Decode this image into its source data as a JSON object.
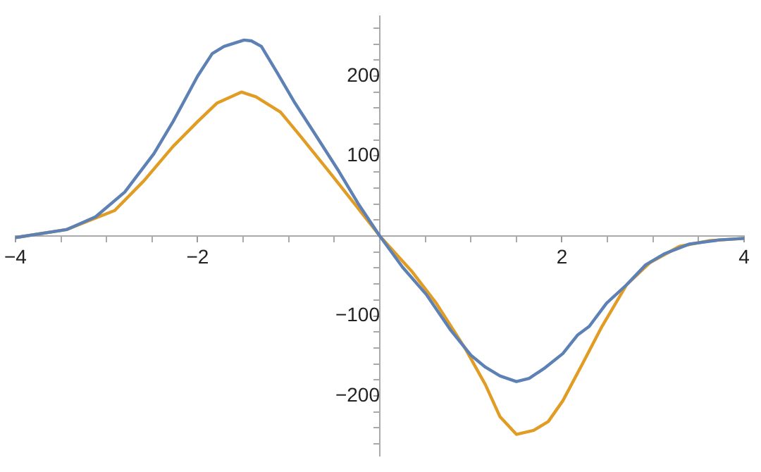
{
  "chart_data": {
    "type": "line",
    "xlim": [
      -4,
      4
    ],
    "ylim": [
      -275,
      275
    ],
    "xticks": [
      -4,
      {
        "value": -3.5,
        "label": null
      },
      {
        "value": -3,
        "label": null
      },
      {
        "value": -2.5,
        "label": null
      },
      -2,
      {
        "value": -1.5,
        "label": null
      },
      {
        "value": -1,
        "label": null
      },
      {
        "value": -0.5,
        "label": null
      },
      {
        "value": 0.5,
        "label": null
      },
      {
        "value": 1,
        "label": null
      },
      {
        "value": 1.5,
        "label": null
      },
      2,
      {
        "value": 2.5,
        "label": null
      },
      {
        "value": 3,
        "label": null
      },
      {
        "value": 3.5,
        "label": null
      },
      4
    ],
    "yticks": [
      {
        "value": -260,
        "label": null
      },
      {
        "value": -240,
        "label": null
      },
      {
        "value": -220,
        "label": null
      },
      -200,
      {
        "value": -180,
        "label": null
      },
      {
        "value": -160,
        "label": null
      },
      {
        "value": -140,
        "label": null
      },
      {
        "value": -120,
        "label": null
      },
      -100,
      {
        "value": -80,
        "label": null
      },
      {
        "value": -60,
        "label": null
      },
      {
        "value": -40,
        "label": null
      },
      {
        "value": -20,
        "label": null
      },
      {
        "value": 20,
        "label": null
      },
      {
        "value": 40,
        "label": null
      },
      {
        "value": 60,
        "label": null
      },
      {
        "value": 80,
        "label": null
      },
      100,
      {
        "value": 120,
        "label": null
      },
      {
        "value": 140,
        "label": null
      },
      {
        "value": 160,
        "label": null
      },
      {
        "value": 180,
        "label": null
      },
      200,
      {
        "value": 220,
        "label": null
      },
      {
        "value": 240,
        "label": null
      },
      {
        "value": 260,
        "label": null
      }
    ],
    "grid": false,
    "legend": false,
    "marker": "none",
    "line_style": "solid",
    "series": [
      {
        "color": "#5e81b5",
        "x": [
          -4,
          -3.44,
          -3.12,
          -2.8,
          -2.48,
          -2.27,
          -2,
          -1.84,
          -1.71,
          -1.6,
          -1.49,
          -1.41,
          -1.3,
          -1.12,
          -0.93,
          -0.72,
          -0.45,
          -0.24,
          0,
          0.25,
          0.51,
          0.78,
          1,
          1.16,
          1.32,
          1.5,
          1.64,
          1.8,
          2.01,
          2.17,
          2.3,
          2.49,
          2.71,
          2.92,
          3.13,
          3.4,
          3.72,
          4
        ],
        "values": [
          -2,
          8,
          24,
          55,
          103,
          143,
          200,
          228,
          237,
          241,
          245,
          244,
          237,
          203,
          166,
          129,
          81,
          41,
          0,
          -39,
          -73,
          -118,
          -149,
          -164,
          -175,
          -182,
          -178,
          -166,
          -147,
          -124,
          -113,
          -84,
          -61,
          -36,
          -22,
          -10,
          -5,
          -3
        ]
      },
      {
        "color": "#e19c24",
        "x": [
          -4,
          -3.44,
          -2.91,
          -2.59,
          -2.27,
          -2,
          -1.79,
          -1.52,
          -1.36,
          -1.09,
          -0.88,
          -0.56,
          -0.24,
          0,
          0.35,
          0.62,
          0.94,
          1.16,
          1.32,
          1.5,
          1.69,
          1.85,
          2.01,
          2.22,
          2.44,
          2.71,
          2.97,
          3.29,
          3.61,
          4
        ],
        "values": [
          -2,
          8,
          32,
          69,
          112,
          143,
          166,
          180,
          174,
          155,
          126,
          81,
          35,
          0,
          -44,
          -84,
          -141,
          -186,
          -226,
          -248,
          -243,
          -232,
          -206,
          -161,
          -113,
          -61,
          -33,
          -13,
          -6,
          -3
        ]
      }
    ]
  }
}
